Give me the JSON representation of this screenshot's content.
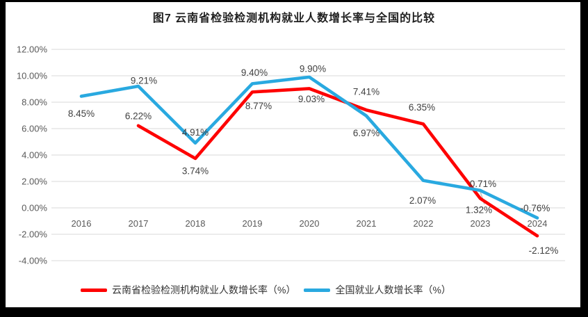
{
  "chart_data": {
    "type": "line",
    "title": "图7  云南省检验检测机构就业人数增长率与全国的比较",
    "categories": [
      "2016",
      "2017",
      "2018",
      "2019",
      "2020",
      "2021",
      "2022",
      "2023",
      "2024"
    ],
    "series": [
      {
        "id": "yunnan",
        "name": "云南省检验检测机构就业人数增长率（%）",
        "color": "#FE0000",
        "values": [
          null,
          6.22,
          3.74,
          8.77,
          9.03,
          7.41,
          6.35,
          0.71,
          -2.12
        ],
        "label_offsets": [
          null,
          [
            0,
            -14
          ],
          [
            0,
            18
          ],
          [
            9,
            20
          ],
          [
            3,
            15
          ],
          [
            0,
            -26
          ],
          [
            -2,
            -24
          ],
          [
            4,
            -21
          ],
          [
            9,
            21
          ]
        ]
      },
      {
        "id": "national",
        "name": "全国就业人数增长率（%）",
        "color": "#29A9E0",
        "values": [
          8.45,
          9.21,
          4.91,
          9.4,
          9.9,
          6.97,
          2.07,
          1.32,
          -0.76
        ],
        "label_offsets": [
          [
            0,
            25
          ],
          [
            8,
            -8
          ],
          [
            0,
            -15
          ],
          [
            3,
            -16
          ],
          [
            5,
            -12
          ],
          [
            0,
            25
          ],
          [
            -1,
            29
          ],
          [
            -2,
            28
          ],
          [
            -3,
            -14
          ]
        ]
      }
    ],
    "ylim": [
      -4,
      12
    ],
    "ytick_step": 2,
    "ytick_suffix": "%",
    "grid": true,
    "legend_position": "bottom",
    "leader_line": {
      "series": 1,
      "index": 7
    }
  },
  "style": {
    "grid_color": "#D9D9D9",
    "axis_text_color": "#595959",
    "label_text_color": "#404040",
    "leader_color": "#BFBFBF",
    "frame_color": "#000000",
    "background": "#FFFFFF"
  }
}
